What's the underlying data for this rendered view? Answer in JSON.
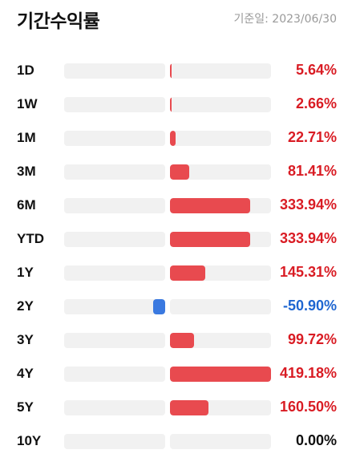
{
  "header": {
    "title": "기간수익률",
    "date": "기준일: 2023/06/30"
  },
  "colors": {
    "positive": "#d91c24",
    "negative": "#1f66d1",
    "neutral": "#111111",
    "positive_bar": "#e84a4f",
    "negative_bar": "#3a79e0",
    "track": "#f1f1f1"
  },
  "chart_data": {
    "type": "bar",
    "scale_max": 419.18,
    "categories": [
      "1D",
      "1W",
      "1M",
      "3M",
      "6M",
      "YTD",
      "1Y",
      "2Y",
      "3Y",
      "4Y",
      "5Y",
      "10Y"
    ],
    "values": [
      5.64,
      2.66,
      22.71,
      81.41,
      333.94,
      333.94,
      145.31,
      -50.9,
      99.72,
      419.18,
      160.5,
      0.0
    ],
    "labels": [
      "5.64%",
      "2.66%",
      "22.71%",
      "81.41%",
      "333.94%",
      "333.94%",
      "145.31%",
      "-50.90%",
      "99.72%",
      "419.18%",
      "160.50%",
      "0.00%"
    ]
  }
}
